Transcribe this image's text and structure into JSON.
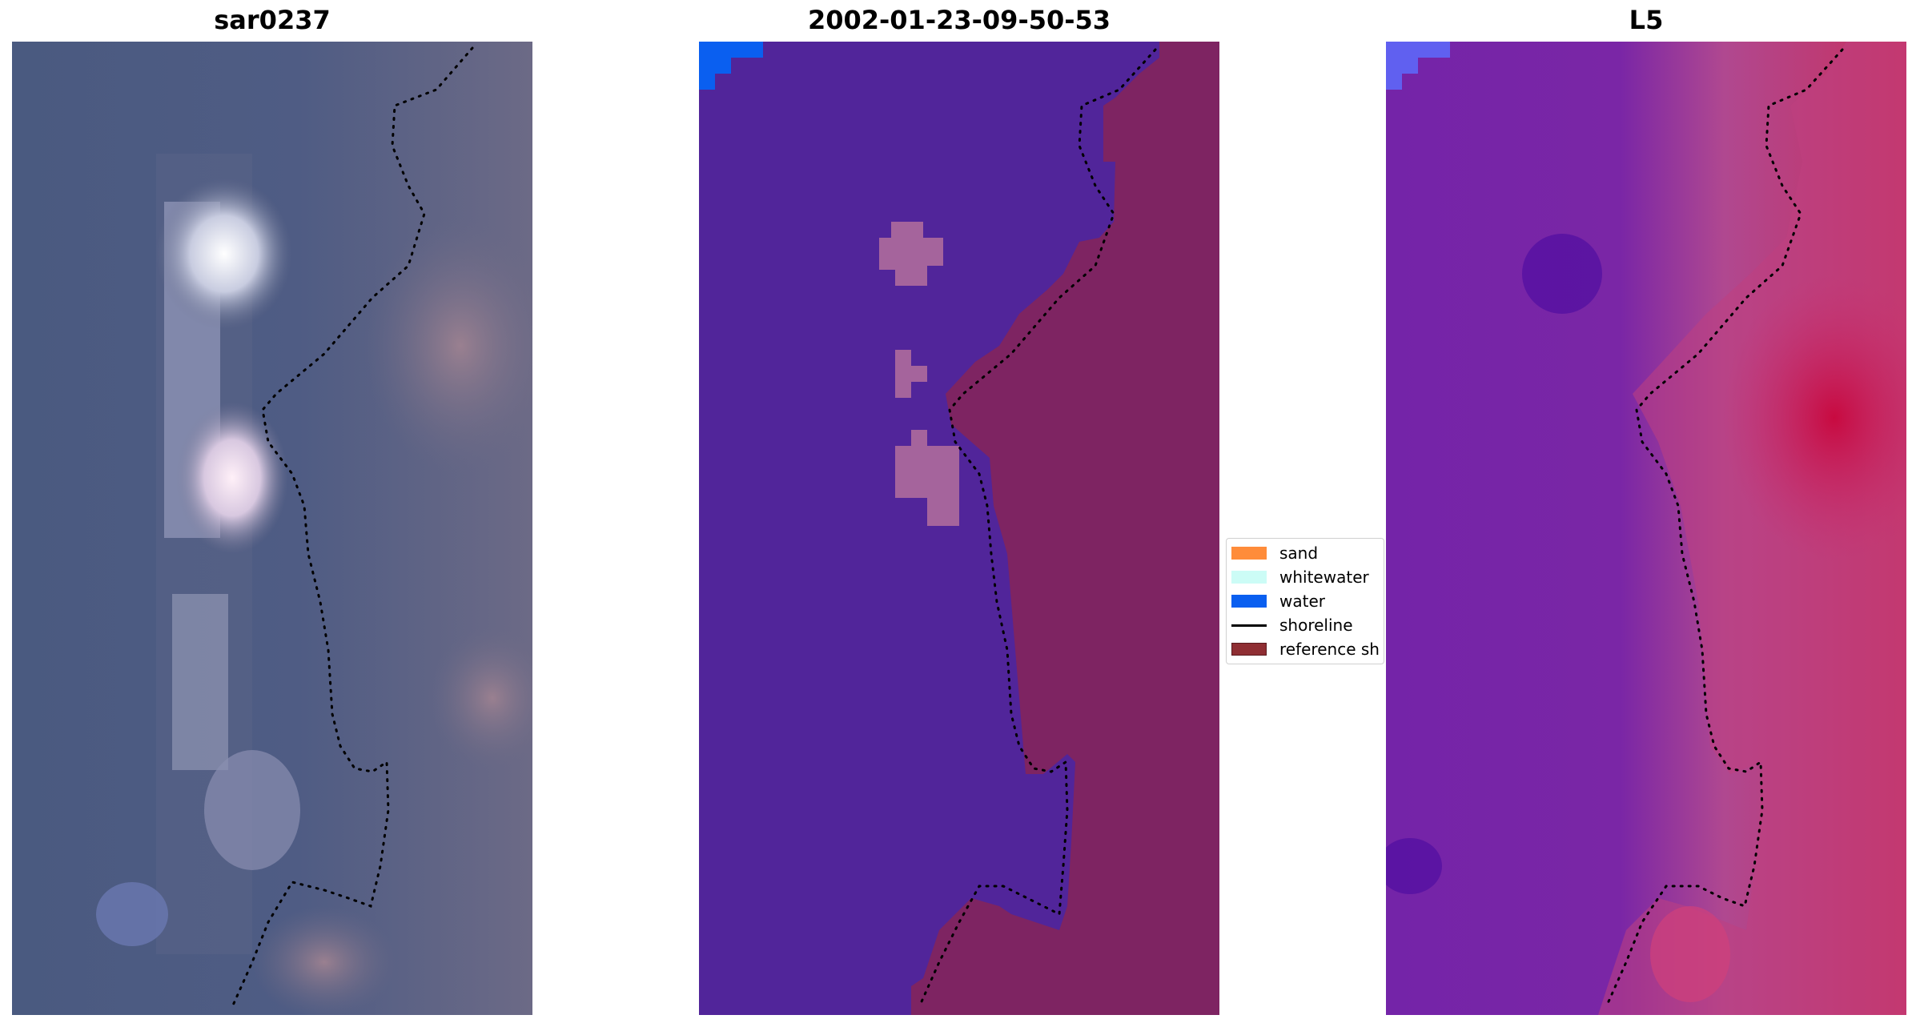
{
  "panels": [
    {
      "title": "sar0237",
      "kind": "rgb"
    },
    {
      "title": "2002-01-23-09-50-53",
      "kind": "classification"
    },
    {
      "title": "L5",
      "kind": "index"
    }
  ],
  "legend": {
    "items": [
      {
        "label": "sand",
        "type": "patch",
        "color": "#ff8c3a"
      },
      {
        "label": "whitewater",
        "type": "patch",
        "color": "#ccfcf6"
      },
      {
        "label": "water",
        "type": "patch",
        "color": "#0a5ff0"
      },
      {
        "label": "shoreline",
        "type": "line",
        "color": "#000000"
      },
      {
        "label": "reference sh",
        "type": "patch",
        "color": "#8f2e33"
      }
    ]
  },
  "colors": {
    "rgb_water": "#4a5a80",
    "rgb_land": "#6c6a86",
    "class_water": "#51259a",
    "class_land": "#7e2462",
    "class_blob": "#a5649c",
    "class_corner": "#0a5ff0",
    "index_water": "#7424a8",
    "index_land": "#c83070",
    "index_corner": "#6060f0",
    "shoreline": "#000000"
  }
}
